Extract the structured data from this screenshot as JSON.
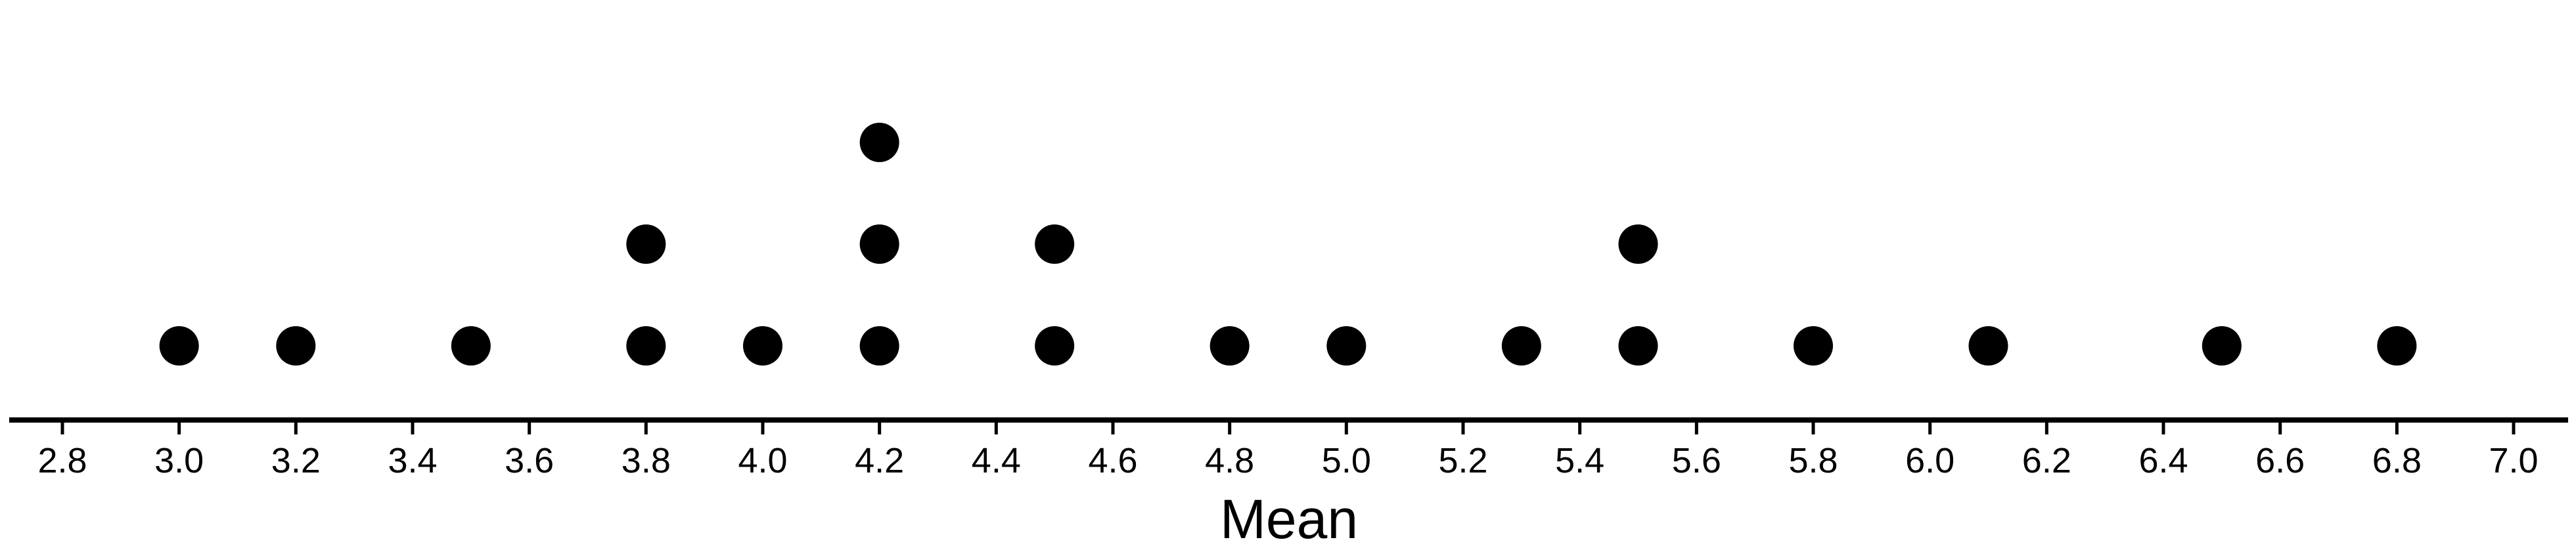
{
  "chart_data": {
    "type": "scatter",
    "title": "",
    "xlabel": "Mean",
    "ylabel": "",
    "xlim": [
      2.8,
      7.0
    ],
    "x_ticks": [
      "2.8",
      "3.0",
      "3.2",
      "3.4",
      "3.6",
      "3.8",
      "4.0",
      "4.2",
      "4.4",
      "4.6",
      "4.8",
      "5.0",
      "5.2",
      "5.4",
      "5.6",
      "5.8",
      "6.0",
      "6.2",
      "6.4",
      "6.6",
      "6.8",
      "7.0"
    ],
    "grid": false,
    "legend": "none",
    "dot_plot": true,
    "values": [
      3.0,
      3.2,
      3.5,
      3.8,
      3.8,
      4.0,
      4.2,
      4.2,
      4.2,
      4.5,
      4.5,
      4.8,
      5.0,
      5.3,
      5.5,
      5.5,
      5.8,
      6.1,
      6.5,
      6.8
    ],
    "counts": [
      {
        "x": 3.0,
        "count": 1
      },
      {
        "x": 3.2,
        "count": 1
      },
      {
        "x": 3.5,
        "count": 1
      },
      {
        "x": 3.8,
        "count": 2
      },
      {
        "x": 4.0,
        "count": 1
      },
      {
        "x": 4.2,
        "count": 3
      },
      {
        "x": 4.5,
        "count": 2
      },
      {
        "x": 4.8,
        "count": 1
      },
      {
        "x": 5.0,
        "count": 1
      },
      {
        "x": 5.3,
        "count": 1
      },
      {
        "x": 5.5,
        "count": 2
      },
      {
        "x": 5.8,
        "count": 1
      },
      {
        "x": 6.1,
        "count": 1
      },
      {
        "x": 6.5,
        "count": 1
      },
      {
        "x": 6.8,
        "count": 1
      }
    ],
    "colors": {
      "dot": "#000000",
      "axis": "#000000",
      "background": "#ffffff"
    }
  }
}
